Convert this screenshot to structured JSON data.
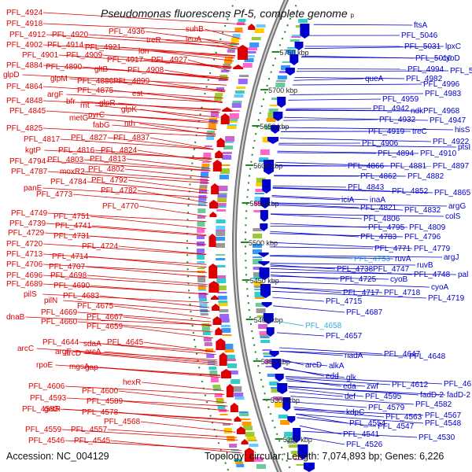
{
  "title": "Pseudomonas fluorescens Pf-5, complete genome",
  "title_suffix": "p",
  "accession": "Accession: NC_004129",
  "topology": "Topology: circular; Length: 7,074,893 bp; Genes: 6,226",
  "colors": {
    "left": "#dd0000",
    "right": "#0000cc",
    "highlight": "#33aadd",
    "tick": "#228822"
  },
  "ticks": [
    {
      "label": "5750 kbp"
    },
    {
      "label": "5700 kbp"
    },
    {
      "label": "5650 kbp"
    },
    {
      "label": "5600 kbp"
    },
    {
      "label": "5550 kbp"
    },
    {
      "label": "5500 kbp"
    },
    {
      "label": "5450 kbp"
    },
    {
      "label": "5400 kbp"
    },
    {
      "label": "5350 kbp"
    },
    {
      "label": "5300 kbp"
    },
    {
      "label": "5250 kbp"
    }
  ],
  "left_labels": [
    {
      "text": "PFL_4924"
    },
    {
      "text": "PFL_4918"
    },
    {
      "text": "PFL_4936"
    },
    {
      "text": "PFL_4912"
    },
    {
      "text": "PFL_4920"
    },
    {
      "text": "treR"
    },
    {
      "text": "suhB"
    },
    {
      "text": "leuA"
    },
    {
      "text": "PFL_4902"
    },
    {
      "text": "PFL_4914"
    },
    {
      "text": "PFL_4921"
    },
    {
      "text": "PFL_4901"
    },
    {
      "text": "PFL_4909"
    },
    {
      "text": "lon"
    },
    {
      "text": "PFL_4917"
    },
    {
      "text": "PFL_4927"
    },
    {
      "text": "PFL_4884"
    },
    {
      "text": "PFL_4890"
    },
    {
      "text": "gltB"
    },
    {
      "text": "PFL_4908"
    },
    {
      "text": "glpD"
    },
    {
      "text": "glpM"
    },
    {
      "text": "PFL_4886"
    },
    {
      "text": "PFL_4899"
    },
    {
      "text": "PFL_4864"
    },
    {
      "text": "PFL_4875"
    },
    {
      "text": "est"
    },
    {
      "text": "argF"
    },
    {
      "text": "PFL_4848"
    },
    {
      "text": "bfr"
    },
    {
      "text": "rnt"
    },
    {
      "text": "glpR"
    },
    {
      "text": "PFL_4845"
    },
    {
      "text": "glpK"
    },
    {
      "text": "metG"
    },
    {
      "text": "pyrC"
    },
    {
      "text": "fabG"
    },
    {
      "text": "nth"
    },
    {
      "text": "PFL_4825"
    },
    {
      "text": "PFL_4817"
    },
    {
      "text": "PFL_4827"
    },
    {
      "text": "PFL_4837"
    },
    {
      "text": "kgtP"
    },
    {
      "text": "PFL_4816"
    },
    {
      "text": "PFL_4824"
    },
    {
      "text": "PFL_4794"
    },
    {
      "text": "PFL_4803"
    },
    {
      "text": "PFL_4813"
    },
    {
      "text": "PFL_4787"
    },
    {
      "text": "moxR2"
    },
    {
      "text": "PFL_4802"
    },
    {
      "text": "PFL_4784"
    },
    {
      "text": "PFL_4792"
    },
    {
      "text": "panE"
    },
    {
      "text": "PFL_4773"
    },
    {
      "text": "PFL_4782"
    },
    {
      "text": "PFL_4770"
    },
    {
      "text": "PFL_4749"
    },
    {
      "text": "PFL_4751"
    },
    {
      "text": "PFL_4739"
    },
    {
      "text": "PFL_4741"
    },
    {
      "text": "PFL_4729"
    },
    {
      "text": "PFL_4731"
    },
    {
      "text": "PFL_4720"
    },
    {
      "text": "PFL_4724"
    },
    {
      "text": "PFL_4713"
    },
    {
      "text": "PFL_4714"
    },
    {
      "text": "PFL_4706"
    },
    {
      "text": "PFL_4707"
    },
    {
      "text": "PFL_4696"
    },
    {
      "text": "PFL_4698"
    },
    {
      "text": "PFL_4689"
    },
    {
      "text": "PFL_4690"
    },
    {
      "text": "pilS"
    },
    {
      "text": "PFL_4683"
    },
    {
      "text": "pilN"
    },
    {
      "text": "PFL_4675"
    },
    {
      "text": "dnaB"
    },
    {
      "text": "PFL_4669"
    },
    {
      "text": "PFL_4667"
    },
    {
      "text": "PFL_4660"
    },
    {
      "text": "PFL_4659"
    },
    {
      "text": "PFL_4644"
    },
    {
      "text": "sdaA"
    },
    {
      "text": "PFL_4645"
    },
    {
      "text": "arcC"
    },
    {
      "text": "argF"
    },
    {
      "text": "arcA"
    },
    {
      "text": "arcD"
    },
    {
      "text": "rpoE"
    },
    {
      "text": "mgsA"
    },
    {
      "text": "gap"
    },
    {
      "text": "hexR"
    },
    {
      "text": "PFL_4606"
    },
    {
      "text": "PFL_4600"
    },
    {
      "text": "PFL_4593"
    },
    {
      "text": "PFL_4589"
    },
    {
      "text": "PFL_4583"
    },
    {
      "text": "gntR"
    },
    {
      "text": "PFL_4578"
    },
    {
      "text": "PFL_4568"
    },
    {
      "text": "PFL_4559"
    },
    {
      "text": "PFL_4557"
    },
    {
      "text": "PFL_4546"
    },
    {
      "text": "PFL_4545"
    }
  ],
  "right_labels": [
    {
      "text": "ftsA"
    },
    {
      "text": "PFL_5046"
    },
    {
      "text": "PFL_5031"
    },
    {
      "text": "lpxC"
    },
    {
      "text": "PFL_5010"
    },
    {
      "text": "cyoD"
    },
    {
      "text": "PFL_4994"
    },
    {
      "text": "PFL_5016"
    },
    {
      "text": "queA"
    },
    {
      "text": "PFL_4982"
    },
    {
      "text": "PFL_4996"
    },
    {
      "text": "PFL_4983"
    },
    {
      "text": "PFL_4959"
    },
    {
      "text": "PFL_4942"
    },
    {
      "text": "ndk"
    },
    {
      "text": "PFL_4968"
    },
    {
      "text": "PFL_4932"
    },
    {
      "text": "PFL_4947"
    },
    {
      "text": "PFL_4919"
    },
    {
      "text": "treC"
    },
    {
      "text": "hisS"
    },
    {
      "text": "PFL_4922"
    },
    {
      "text": "PFL_4906"
    },
    {
      "text": "ptsI"
    },
    {
      "text": "PFL_4894"
    },
    {
      "text": "PFL_4910"
    },
    {
      "text": "PFL_4866"
    },
    {
      "text": "PFL_4881"
    },
    {
      "text": "PFL_4897"
    },
    {
      "text": "PFL_4862"
    },
    {
      "text": "PFL_4882"
    },
    {
      "text": "PFL_4843"
    },
    {
      "text": "PFL_4852"
    },
    {
      "text": "PFL_4865"
    },
    {
      "text": "iciA"
    },
    {
      "text": "inaA"
    },
    {
      "text": "argG"
    },
    {
      "text": "PFL_4821"
    },
    {
      "text": "PFL_4832"
    },
    {
      "text": "PFL_4806"
    },
    {
      "text": "colS"
    },
    {
      "text": "PFL_4795"
    },
    {
      "text": "PFL_4809"
    },
    {
      "text": "PFL_4783"
    },
    {
      "text": "PFL_4796"
    },
    {
      "text": "PFL_4771"
    },
    {
      "text": "PFL_4779"
    },
    {
      "text": "argJ"
    },
    {
      "text": "PFL_4753",
      "highlight": true
    },
    {
      "text": "ruvA"
    },
    {
      "text": "ruvB"
    },
    {
      "text": "PFL_4738"
    },
    {
      "text": "PFL_4747"
    },
    {
      "text": "PFL_4748"
    },
    {
      "text": "pal"
    },
    {
      "text": "PFL_4725"
    },
    {
      "text": "cyoB"
    },
    {
      "text": "cyoA"
    },
    {
      "text": "PFL_4717"
    },
    {
      "text": "PFL_4718"
    },
    {
      "text": "PFL_4719"
    },
    {
      "text": "PFL_4715"
    },
    {
      "text": "PFL_4687"
    },
    {
      "text": "PFL_4658",
      "highlight": true
    },
    {
      "text": "PFL_4657"
    },
    {
      "text": "nadA"
    },
    {
      "text": "PFL_4647"
    },
    {
      "text": "PFL_4648"
    },
    {
      "text": "arcD"
    },
    {
      "text": "alkA"
    },
    {
      "text": "edd"
    },
    {
      "text": "glk"
    },
    {
      "text": "eda"
    },
    {
      "text": "zwf"
    },
    {
      "text": "PFL_4612"
    },
    {
      "text": "PFL_4615"
    },
    {
      "text": "def"
    },
    {
      "text": "PFL_4595"
    },
    {
      "text": "fadD-2"
    },
    {
      "text": "fadD-2"
    },
    {
      "text": "PFL_4579"
    },
    {
      "text": "PFL_4582"
    },
    {
      "text": "kdpC"
    },
    {
      "text": "PFL_4567"
    },
    {
      "text": "PFL_4554"
    },
    {
      "text": "PFL_4563"
    },
    {
      "text": "PFL_4547"
    },
    {
      "text": "PFL_4548"
    },
    {
      "text": "PFL_4541"
    },
    {
      "text": "PFL_4530"
    },
    {
      "text": "PFL_4526"
    }
  ]
}
